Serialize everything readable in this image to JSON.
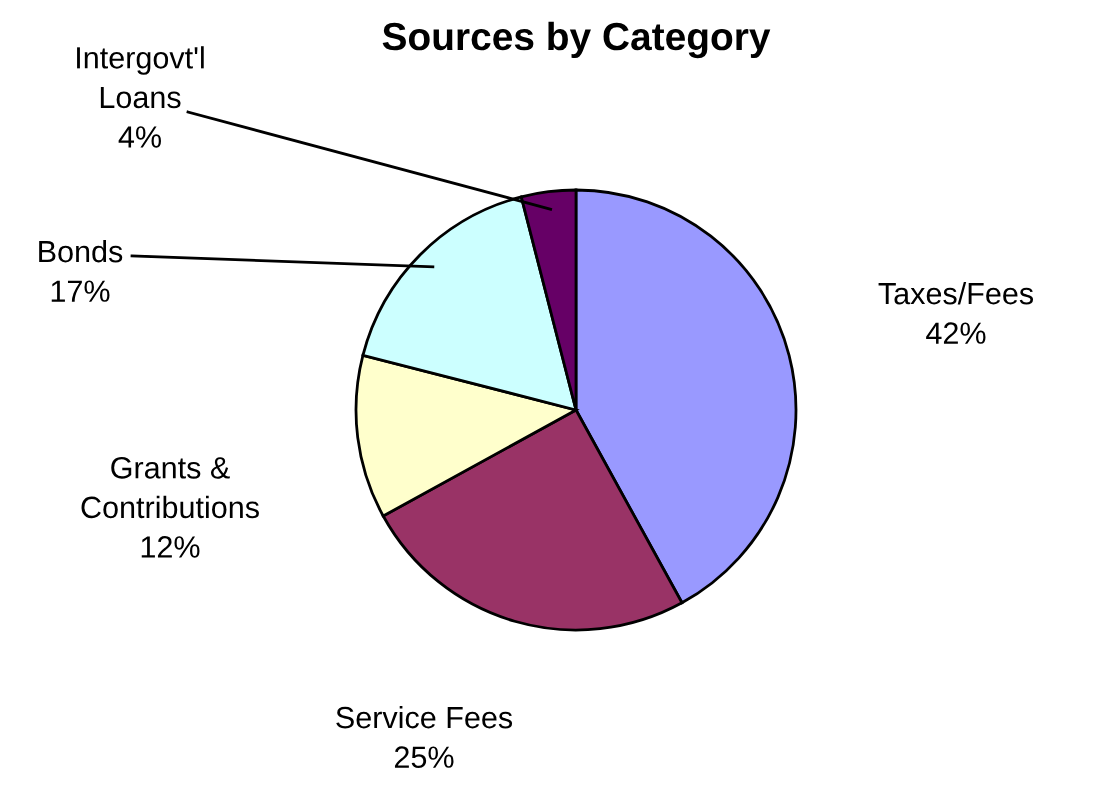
{
  "chart_data": {
    "type": "pie",
    "title": "Sources by Category",
    "categories": [
      "Taxes/Fees",
      "Service Fees",
      "Grants & Contributions",
      "Bonds",
      "Intergovt'l Loans"
    ],
    "values": [
      42,
      25,
      12,
      17,
      4
    ],
    "value_labels": [
      "42%",
      "25%",
      "12%",
      "17%",
      "4%"
    ],
    "colors": [
      "#9999ff",
      "#993366",
      "#ffffcc",
      "#ccffff",
      "#660066"
    ]
  }
}
